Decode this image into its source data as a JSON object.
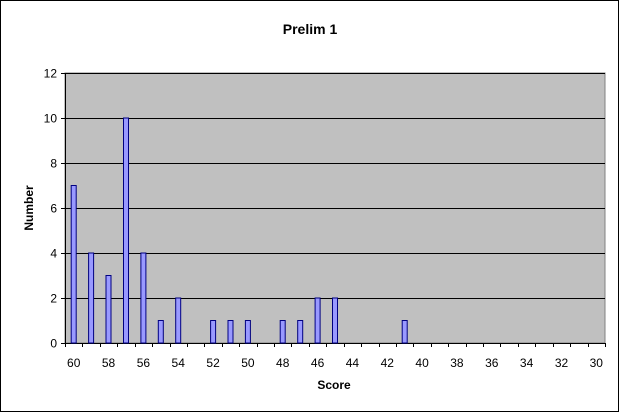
{
  "chart_data": {
    "type": "bar",
    "title": "Prelim 1",
    "xlabel": "Score",
    "ylabel": "Number",
    "ylim": [
      0,
      12
    ],
    "y_ticks": [
      0,
      2,
      4,
      6,
      8,
      10,
      12
    ],
    "x_axis_direction": "descending",
    "x_tick_labels": [
      "60",
      "58",
      "56",
      "54",
      "52",
      "50",
      "48",
      "46",
      "44",
      "42",
      "40",
      "38",
      "36",
      "34",
      "32",
      "30"
    ],
    "categories": [
      60,
      59,
      58,
      57,
      56,
      55,
      54,
      53,
      52,
      51,
      50,
      49,
      48,
      47,
      46,
      45,
      44,
      43,
      42,
      41,
      40,
      39,
      38,
      37,
      36,
      35,
      34,
      33,
      32,
      31,
      30
    ],
    "values": [
      7,
      4,
      3,
      10,
      4,
      1,
      2,
      0,
      1,
      1,
      1,
      0,
      1,
      1,
      2,
      2,
      0,
      0,
      0,
      1,
      0,
      0,
      0,
      0,
      0,
      0,
      0,
      0,
      0,
      0,
      0
    ],
    "grid": true,
    "legend": "none",
    "colors": {
      "plot_background": "#c0c0c0",
      "bar_fill": "#9999ff",
      "bar_stroke": "#000080",
      "gridline": "#000000"
    }
  }
}
